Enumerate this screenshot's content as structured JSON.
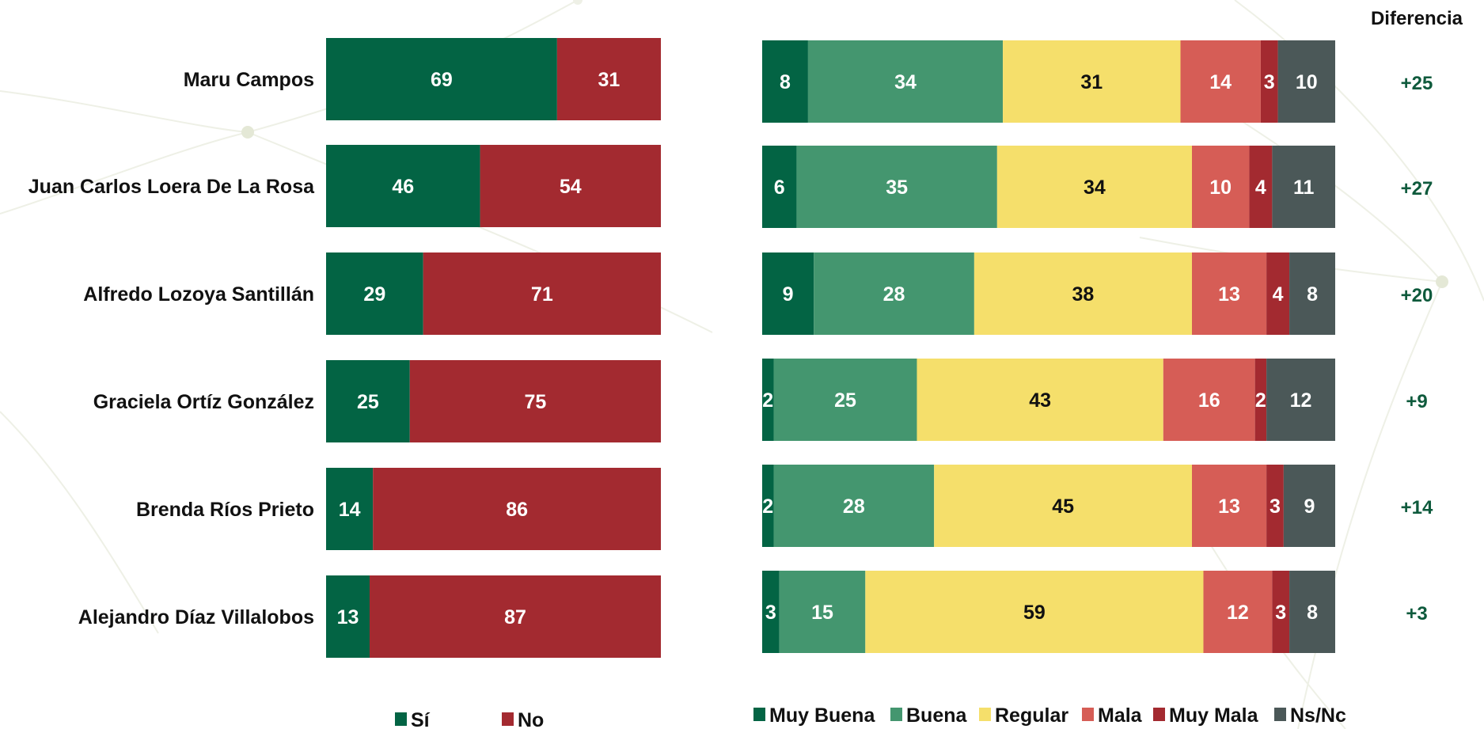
{
  "chart_data": [
    {
      "type": "bar",
      "orientation": "horizontal",
      "stacked": true,
      "categories": [
        "Maru Campos",
        "Juan Carlos Loera De La Rosa",
        "Alfredo Lozoya Santillán",
        "Graciela Ortíz González",
        "Brenda Ríos Prieto",
        "Alejandro Díaz Villalobos"
      ],
      "series": [
        {
          "name": "Sí",
          "color": "#036444",
          "values": [
            69,
            46,
            29,
            25,
            14,
            13
          ]
        },
        {
          "name": "No",
          "color": "#a32a30",
          "values": [
            31,
            54,
            71,
            75,
            86,
            87
          ]
        }
      ],
      "xlim": [
        0,
        100
      ],
      "legend": "bottom",
      "grid": false
    },
    {
      "type": "bar",
      "orientation": "horizontal",
      "stacked": true,
      "categories": [
        "Maru Campos",
        "Juan Carlos Loera De La Rosa",
        "Alfredo Lozoya Santillán",
        "Graciela Ortíz González",
        "Brenda Ríos Prieto",
        "Alejandro Díaz Villalobos"
      ],
      "series": [
        {
          "name": "Muy Buena",
          "color": "#036444",
          "label_color": "#ffffff",
          "values": [
            8,
            6,
            9,
            2,
            2,
            3
          ]
        },
        {
          "name": "Buena",
          "color": "#44966f",
          "label_color": "#ffffff",
          "values": [
            34,
            35,
            28,
            25,
            28,
            15
          ]
        },
        {
          "name": "Regular",
          "color": "#f5df6b",
          "label_color": "#111111",
          "values": [
            31,
            34,
            38,
            43,
            45,
            59
          ]
        },
        {
          "name": "Mala",
          "color": "#d65d56",
          "label_color": "#ffffff",
          "values": [
            14,
            10,
            13,
            16,
            13,
            12
          ]
        },
        {
          "name": "Muy Mala",
          "color": "#a32a30",
          "label_color": "#ffffff",
          "values": [
            3,
            4,
            4,
            2,
            3,
            3
          ]
        },
        {
          "name": "Ns/Nc",
          "color": "#4b5858",
          "label_color": "#ffffff",
          "values": [
            10,
            11,
            8,
            12,
            9,
            8
          ]
        }
      ],
      "xlim": [
        0,
        100
      ],
      "legend": "bottom",
      "grid": false
    }
  ],
  "difference": {
    "title": "Diferencia",
    "color": "#0e5a3c",
    "values": [
      "+25",
      "+27",
      "+20",
      "+9",
      "+14",
      "+3"
    ]
  }
}
